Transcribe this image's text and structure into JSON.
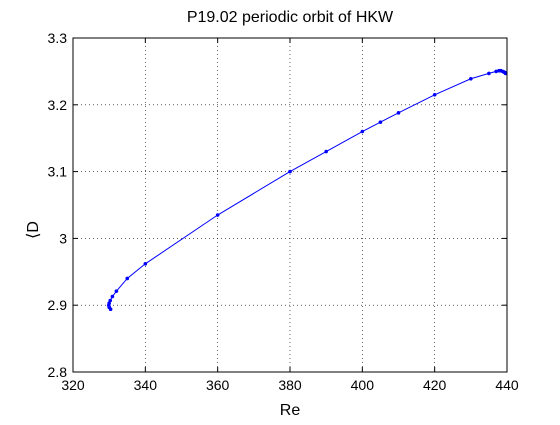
{
  "chart_data": {
    "type": "line",
    "title": "P19.02 periodic orbit of HKW",
    "xlabel": "Re",
    "ylabel": "⟨D",
    "xlim": [
      320,
      440
    ],
    "ylim": [
      2.8,
      3.3
    ],
    "xticks": [
      320,
      340,
      360,
      380,
      400,
      420,
      440
    ],
    "xtick_labels": [
      "320",
      "340",
      "360",
      "380",
      "400",
      "420",
      "440"
    ],
    "yticks": [
      2.8,
      2.9,
      3.0,
      3.1,
      3.2,
      3.3
    ],
    "ytick_labels": [
      "2.8",
      "2.9",
      "3",
      "3.1",
      "3.2",
      "3.3"
    ],
    "grid": true,
    "series": [
      {
        "color": "#0000ff",
        "marker": "dot",
        "points": [
          [
            330.4,
            2.894
          ],
          [
            330.0,
            2.897
          ],
          [
            329.9,
            2.9
          ],
          [
            330.0,
            2.903
          ],
          [
            330.3,
            2.907
          ],
          [
            330.9,
            2.913
          ],
          [
            332.0,
            2.921
          ],
          [
            335.0,
            2.94
          ],
          [
            340.0,
            2.962
          ],
          [
            360.0,
            3.035
          ],
          [
            380.0,
            3.1
          ],
          [
            390.0,
            3.13
          ],
          [
            400.0,
            3.16
          ],
          [
            405.0,
            3.174
          ],
          [
            410.0,
            3.188
          ],
          [
            420.0,
            3.215
          ],
          [
            430.0,
            3.239
          ],
          [
            435.0,
            3.247
          ],
          [
            437.0,
            3.25
          ],
          [
            437.8,
            3.251
          ],
          [
            438.3,
            3.251
          ],
          [
            438.8,
            3.25
          ],
          [
            439.2,
            3.249
          ],
          [
            439.5,
            3.248
          ],
          [
            439.6,
            3.247
          ]
        ]
      }
    ]
  }
}
